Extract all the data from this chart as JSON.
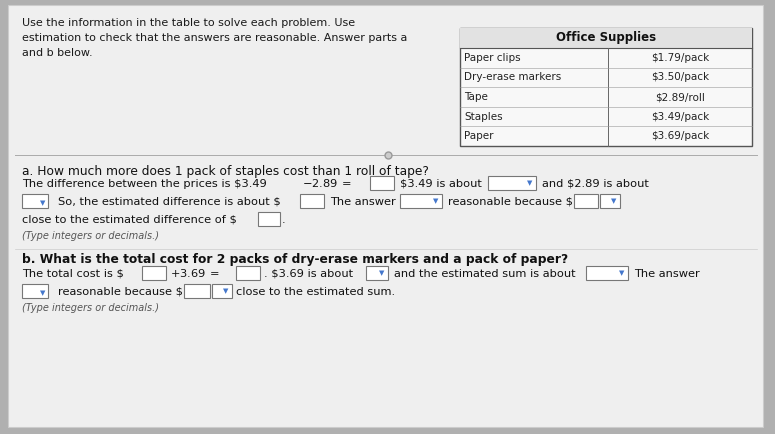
{
  "bg_color": "#b0b0b0",
  "panel_color": "#f0f0f0",
  "table_header": "Office Supplies",
  "table_items": [
    "Paper clips",
    "Dry-erase markers",
    "Tape",
    "Staples",
    "Paper"
  ],
  "table_prices": [
    "$1.79/pack",
    "$3.50/pack",
    "$2.89/roll",
    "$3.49/pack",
    "$3.69/pack"
  ],
  "intro_text": "Use the information in the table to solve each problem. Use\nestimation to check that the answers are reasonable. Answer parts a\nand b below.",
  "part_a_header": "a. How much more does 1 pack of staples cost than 1 roll of tape?",
  "part_b_header": "b. What is the total cost for 2 packs of dry-erase markers and a pack of paper?",
  "note": "(Type integers or decimals.)"
}
